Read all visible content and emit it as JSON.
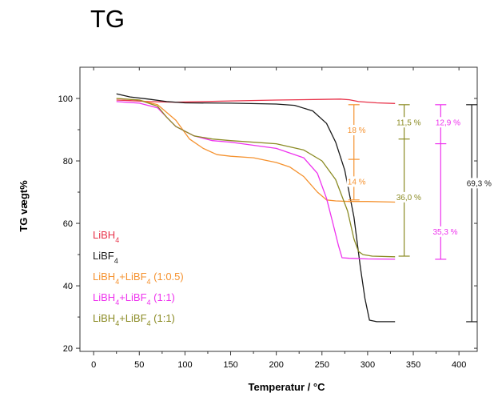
{
  "title": "TG",
  "chart_data": {
    "type": "line",
    "xlabel": "Temperatur / °C",
    "ylabel": "TG vægt%",
    "xlim": [
      -15,
      420
    ],
    "ylim": [
      19,
      110
    ],
    "xticks": [
      0,
      50,
      100,
      150,
      200,
      250,
      300,
      350,
      400
    ],
    "yticks": [
      20,
      40,
      60,
      80,
      100
    ],
    "legend_position": "bottom-left",
    "series": [
      {
        "name": "LiBH4",
        "base": "LiBH",
        "sub": "4",
        "suffix": "",
        "color": "#e8334a",
        "x": [
          25,
          40,
          60,
          90,
          120,
          150,
          200,
          250,
          270,
          280,
          290,
          310,
          330
        ],
        "y": [
          99.5,
          99.3,
          99.0,
          98.8,
          99.0,
          99.2,
          99.5,
          99.7,
          99.8,
          99.6,
          99.0,
          98.6,
          98.4
        ]
      },
      {
        "name": "LiBF4",
        "base": "LiBF",
        "sub": "4",
        "suffix": "",
        "color": "#1a1a1a",
        "x": [
          25,
          40,
          60,
          80,
          100,
          150,
          200,
          220,
          240,
          255,
          265,
          275,
          285,
          292,
          297,
          302,
          310,
          330
        ],
        "y": [
          101.5,
          100.5,
          99.8,
          99.0,
          98.6,
          98.5,
          98.2,
          97.8,
          96.0,
          92.0,
          86.0,
          77.0,
          62.0,
          46.0,
          36.0,
          29.0,
          28.5,
          28.5
        ]
      },
      {
        "name": "LiBH4+LiBF4 (1:0.5)",
        "base": "LiBH",
        "sub": "4",
        "mid": "+LiBF",
        "sub2": "4",
        "suffix": " (1:0.5)",
        "color": "#f5922f",
        "x": [
          25,
          50,
          70,
          90,
          105,
          120,
          135,
          150,
          175,
          200,
          215,
          230,
          245,
          255,
          265,
          280,
          300,
          330
        ],
        "y": [
          100,
          99.5,
          98.0,
          93.0,
          87.0,
          84.0,
          82.0,
          81.5,
          81.0,
          79.5,
          78.0,
          75.0,
          70.0,
          67.5,
          67.2,
          67.0,
          67.0,
          66.8
        ]
      },
      {
        "name": "LiBH4+LiBF4 (1:1)",
        "base": "LiBH",
        "sub": "4",
        "mid": "+LiBF",
        "sub2": "4",
        "suffix": " (1:1)",
        "color": "#ee32ee",
        "x": [
          25,
          50,
          70,
          80,
          90,
          110,
          130,
          150,
          200,
          230,
          245,
          255,
          262,
          268,
          272,
          280,
          300,
          330
        ],
        "y": [
          99.0,
          98.5,
          97.0,
          94.0,
          91.0,
          88.0,
          86.5,
          86.0,
          84.0,
          81.0,
          76.0,
          68.0,
          60.0,
          53.0,
          49.0,
          48.8,
          48.6,
          48.5
        ]
      },
      {
        "name": "LiBH4+LiBF4 (1:1)",
        "base": "LiBH",
        "sub": "4",
        "mid": "+LiBF",
        "sub2": "4",
        "suffix": " (1:1)",
        "color": "#8b8b24",
        "x": [
          25,
          50,
          70,
          80,
          90,
          110,
          130,
          150,
          200,
          230,
          250,
          265,
          278,
          285,
          290,
          295,
          305,
          330
        ],
        "y": [
          100.0,
          99.5,
          97.5,
          94.0,
          91.0,
          88.0,
          87.0,
          86.5,
          85.5,
          83.5,
          80.0,
          74.0,
          64.0,
          55.0,
          51.0,
          50.0,
          49.5,
          49.3
        ]
      }
    ],
    "annotations": [
      {
        "text": "18 %",
        "color": "#f5922f",
        "x": 288,
        "y": 90,
        "anchor": "middle"
      },
      {
        "text": "14 %",
        "color": "#f5922f",
        "x": 288,
        "y": 73.5,
        "anchor": "middle"
      },
      {
        "text": "11,5 %",
        "color": "#8b8b24",
        "x": 345,
        "y": 92.5,
        "anchor": "middle"
      },
      {
        "text": "36,0 %",
        "color": "#8b8b24",
        "x": 345,
        "y": 68.5,
        "anchor": "middle"
      },
      {
        "text": "12,9 %",
        "color": "#ee32ee",
        "x": 388,
        "y": 92.5,
        "anchor": "middle"
      },
      {
        "text": "35,3 %",
        "color": "#ee32ee",
        "x": 385,
        "y": 57.5,
        "anchor": "middle"
      },
      {
        "text": "69,3 %",
        "color": "#1a1a1a",
        "x": 422,
        "y": 73,
        "anchor": "middle"
      }
    ],
    "brackets": [
      {
        "color": "#f5922f",
        "x": 285,
        "y_top": 98,
        "y_mid": 80.5,
        "y_bot": 67.5
      },
      {
        "color": "#8b8b24",
        "x": 340,
        "y_top": 98,
        "y_mid": 87,
        "y_bot": 49.5
      },
      {
        "color": "#ee32ee",
        "x": 380,
        "y_top": 98,
        "y_mid": 85.5,
        "y_bot": 48.5
      },
      {
        "color": "#1a1a1a",
        "x": 414,
        "y_top": 98,
        "y_bot": 28.5
      }
    ]
  }
}
